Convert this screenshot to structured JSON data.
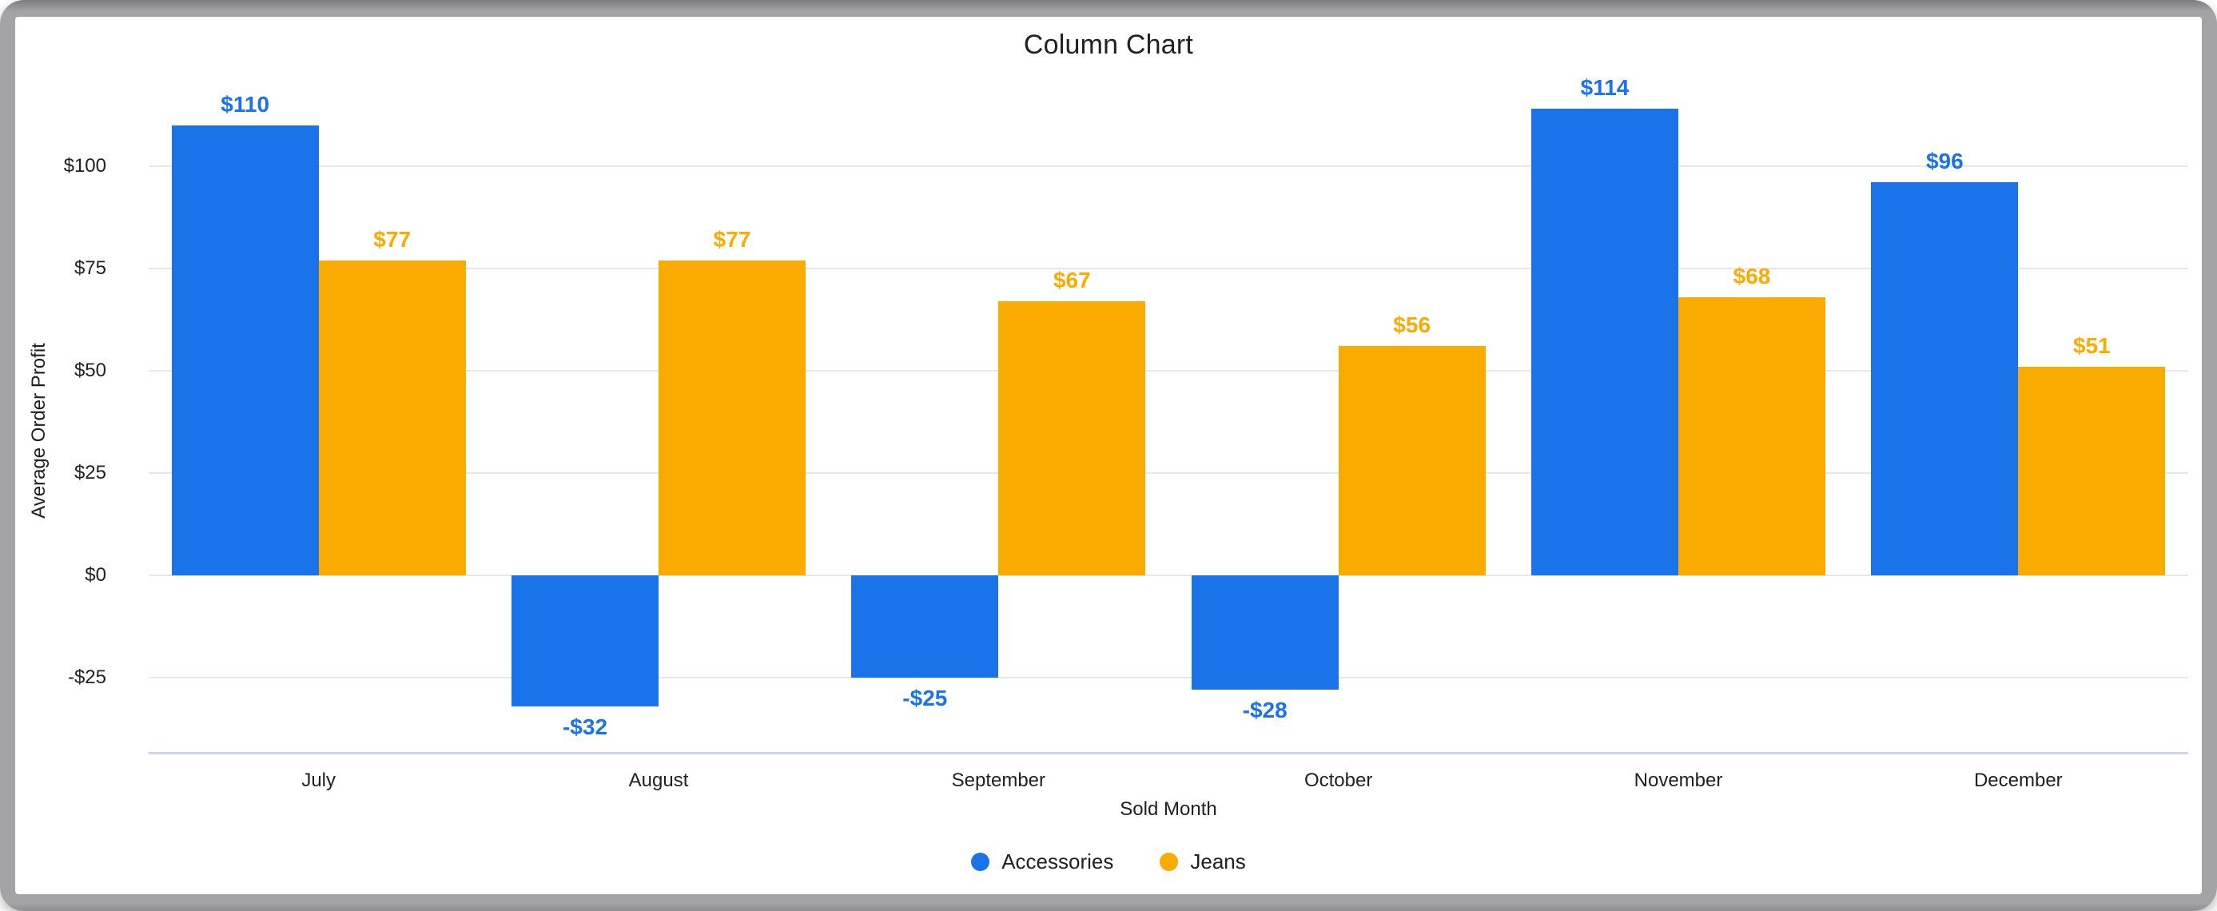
{
  "chart_data": {
    "type": "bar",
    "title": "Column Chart",
    "xlabel": "Sold Month",
    "ylabel": "Average Order Profit",
    "categories": [
      "July",
      "August",
      "September",
      "October",
      "November",
      "December"
    ],
    "series": [
      {
        "name": "Accessories",
        "color": "#1a73e8",
        "values": [
          110,
          -32,
          -25,
          -28,
          114,
          96
        ],
        "labels": [
          "$110",
          "-$32",
          "-$25",
          "-$28",
          "$114",
          "$96"
        ]
      },
      {
        "name": "Jeans",
        "color": "#f9ab00",
        "values": [
          77,
          77,
          67,
          56,
          68,
          51
        ],
        "labels": [
          "$77",
          "$77",
          "$67",
          "$56",
          "$68",
          "$51"
        ]
      }
    ],
    "y_ticks": [
      {
        "value": 100,
        "label": "$100"
      },
      {
        "value": 75,
        "label": "$75"
      },
      {
        "value": 50,
        "label": "$50"
      },
      {
        "value": 25,
        "label": "$25"
      },
      {
        "value": 0,
        "label": "$0"
      },
      {
        "value": -25,
        "label": "-$25"
      }
    ],
    "ylim": [
      -43,
      120
    ],
    "grid": true,
    "legend_position": "bottom"
  },
  "colors": {
    "accessories": "#1a73e8",
    "jeans": "#f9ab00",
    "gridline": "#e7e7e7",
    "axis_line": "#ccd8ee",
    "text": "#202124",
    "frame": "#a4a4a7",
    "card": "#ffffff"
  }
}
